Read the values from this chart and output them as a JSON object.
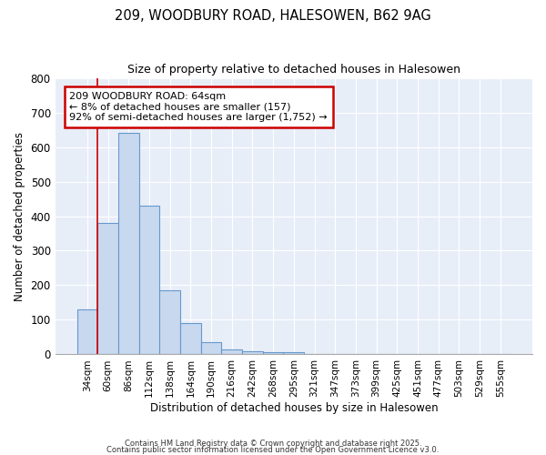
{
  "title1": "209, WOODBURY ROAD, HALESOWEN, B62 9AG",
  "title2": "Size of property relative to detached houses in Halesowen",
  "xlabel": "Distribution of detached houses by size in Halesowen",
  "ylabel": "Number of detached properties",
  "bar_color": "#c8d8ee",
  "bar_edge_color": "#6699cc",
  "plot_bg_color": "#e8eef8",
  "fig_bg_color": "#ffffff",
  "grid_color": "#ffffff",
  "categories": [
    "34sqm",
    "60sqm",
    "86sqm",
    "112sqm",
    "138sqm",
    "164sqm",
    "190sqm",
    "216sqm",
    "242sqm",
    "268sqm",
    "295sqm",
    "321sqm",
    "347sqm",
    "373sqm",
    "399sqm",
    "425sqm",
    "451sqm",
    "477sqm",
    "503sqm",
    "529sqm",
    "555sqm"
  ],
  "values": [
    130,
    380,
    640,
    430,
    185,
    90,
    35,
    15,
    10,
    7,
    7,
    0,
    0,
    0,
    0,
    0,
    0,
    0,
    0,
    0,
    0
  ],
  "vline_x": 1,
  "vline_color": "#cc0000",
  "annotation_text": "209 WOODBURY ROAD: 64sqm\n← 8% of detached houses are smaller (157)\n92% of semi-detached houses are larger (1,752) →",
  "annotation_box_color": "#ffffff",
  "annotation_box_edge": "#cc0000",
  "ylim": [
    0,
    800
  ],
  "yticks": [
    0,
    100,
    200,
    300,
    400,
    500,
    600,
    700,
    800
  ],
  "footer1": "Contains HM Land Registry data © Crown copyright and database right 2025.",
  "footer2": "Contains public sector information licensed under the Open Government Licence v3.0."
}
